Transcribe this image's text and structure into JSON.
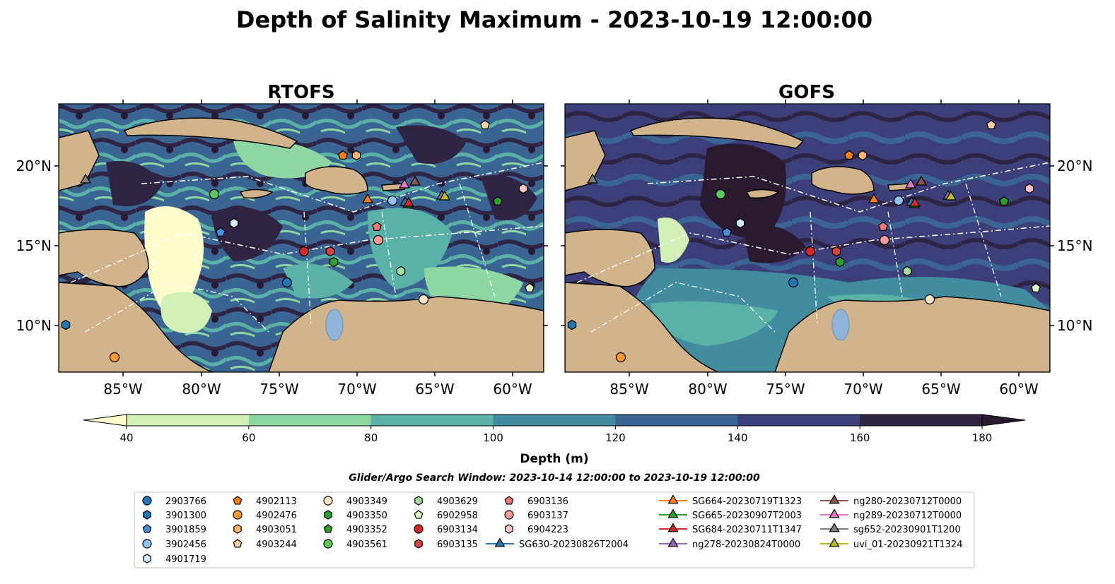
{
  "figure": {
    "title": "Depth of Salinity Maximum - 2023-10-19 12:00:00",
    "search_window": "Glider/Argo Search Window: 2023-10-14 12:00:00 to 2023-10-19 12:00:00"
  },
  "maps": [
    {
      "id": "rtofs",
      "title": "RTOFS",
      "lat_labels_side": "left"
    },
    {
      "id": "gofs",
      "title": "GOFS",
      "lat_labels_side": "right"
    }
  ],
  "axes": {
    "lon_ticks": [
      "85°W",
      "80°W",
      "75°W",
      "70°W",
      "65°W",
      "60°W"
    ],
    "lat_ticks": [
      "20°N",
      "15°N",
      "10°N"
    ]
  },
  "colorbar": {
    "label": "Depth (m)",
    "ticks": [
      "40",
      "60",
      "80",
      "100",
      "120",
      "140",
      "160",
      "180"
    ],
    "extend": "both",
    "colors": [
      "#fdfdcc",
      "#d2efb5",
      "#8ed7a3",
      "#5ab2a6",
      "#418c9f",
      "#3a6592",
      "#3c3f7a",
      "#2f2444",
      "#291a30"
    ]
  },
  "land_color": "#d2b48c",
  "legend": {
    "floats": [
      {
        "label": "2903766",
        "marker": "circle",
        "color": "#1f77b4"
      },
      {
        "label": "3901300",
        "marker": "hexagon",
        "color": "#1f77b4"
      },
      {
        "label": "3901859",
        "marker": "pentagon",
        "color": "#4a90d9"
      },
      {
        "label": "3902456",
        "marker": "circle",
        "color": "#8fc3ec"
      },
      {
        "label": "4901719",
        "marker": "hexagon",
        "color": "#d4ecff"
      },
      {
        "label": "4902113",
        "marker": "pentagon",
        "color": "#ff7f0e"
      },
      {
        "label": "4902476",
        "marker": "circle",
        "color": "#ff9933"
      },
      {
        "label": "4903051",
        "marker": "hexagon",
        "color": "#ffb370"
      },
      {
        "label": "4903244",
        "marker": "pentagon",
        "color": "#ffd2a6"
      },
      {
        "label": "4903349",
        "marker": "circle",
        "color": "#fde3c6"
      },
      {
        "label": "4903350",
        "marker": "hexagon",
        "color": "#2ca02c"
      },
      {
        "label": "4903352",
        "marker": "pentagon",
        "color": "#2ca02c"
      },
      {
        "label": "4903561",
        "marker": "circle",
        "color": "#5cc75c"
      },
      {
        "label": "4903629",
        "marker": "hexagon",
        "color": "#a0dfa0"
      },
      {
        "label": "6902958",
        "marker": "pentagon",
        "color": "#dcf6c8"
      },
      {
        "label": "6903134",
        "marker": "circle",
        "color": "#d62728"
      },
      {
        "label": "6903135",
        "marker": "hexagon",
        "color": "#e04040"
      },
      {
        "label": "6903136",
        "marker": "pentagon",
        "color": "#ee7777"
      },
      {
        "label": "6903137",
        "marker": "circle",
        "color": "#f49a9a"
      },
      {
        "label": "6904223",
        "marker": "hexagon",
        "color": "#fbc4c4"
      }
    ],
    "gliders": [
      {
        "label": "SG630-20230826T2004",
        "color": "#1f77b4"
      },
      {
        "label": "SG664-20230719T1323",
        "color": "#ff7f0e"
      },
      {
        "label": "SG665-20230907T2003",
        "color": "#2ca02c"
      },
      {
        "label": "SG684-20230711T1347",
        "color": "#d62728"
      },
      {
        "label": "ng278-20230824T0000",
        "color": "#9467bd"
      },
      {
        "label": "ng280-20230712T0000",
        "color": "#8c564b"
      },
      {
        "label": "ng289-20230712T0000",
        "color": "#e377c2"
      },
      {
        "label": "sg652-20230901T1200",
        "color": "#7f7f7f"
      },
      {
        "label": "uvi_01-20230921T1324",
        "color": "#bcbd22"
      }
    ]
  }
}
